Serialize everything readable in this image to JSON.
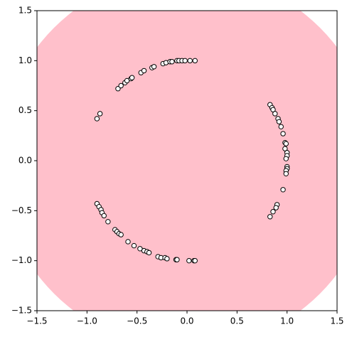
{
  "chart_data": {
    "type": "scatter",
    "region": {
      "shape": "circle",
      "radius": 1.88,
      "color": "#ffc0cb"
    },
    "marker_color": "#ffffff",
    "marker_edge": "#000000",
    "x": [
      -0.69,
      -0.66,
      -0.62,
      -0.6,
      -0.56,
      -0.55,
      -0.46,
      -0.43,
      -0.35,
      -0.33,
      -0.24,
      -0.21,
      -0.17,
      -0.15,
      -0.1,
      -0.08,
      -0.05,
      -0.02,
      0.03,
      0.08,
      -0.87,
      -0.9,
      0.83,
      0.85,
      0.86,
      0.88,
      0.91,
      0.92,
      0.94,
      0.96,
      0.98,
      0.99,
      0.98,
      1.0,
      1.0,
      0.99,
      1.0,
      1.0,
      0.99,
      0.99,
      0.96,
      0.9,
      0.89,
      0.86,
      0.83,
      -0.9,
      -0.88,
      -0.86,
      -0.85,
      -0.83,
      -0.79,
      -0.72,
      -0.7,
      -0.68,
      -0.66,
      -0.59,
      -0.53,
      -0.47,
      -0.43,
      -0.4,
      -0.38,
      -0.29,
      -0.26,
      -0.22,
      -0.2,
      -0.11,
      -0.1,
      0.02,
      0.07,
      0.08
    ],
    "values": [
      0.72,
      0.75,
      0.78,
      0.8,
      0.82,
      0.83,
      0.88,
      0.9,
      0.93,
      0.94,
      0.97,
      0.98,
      0.99,
      0.99,
      1.0,
      1.0,
      1.0,
      1.0,
      1.0,
      1.0,
      0.47,
      0.42,
      0.56,
      0.53,
      0.51,
      0.47,
      0.42,
      0.39,
      0.34,
      0.27,
      0.18,
      0.17,
      0.12,
      0.08,
      0.05,
      0.02,
      -0.06,
      -0.08,
      -0.1,
      -0.13,
      -0.29,
      -0.44,
      -0.47,
      -0.51,
      -0.56,
      -0.43,
      -0.46,
      -0.49,
      -0.52,
      -0.55,
      -0.61,
      -0.69,
      -0.71,
      -0.73,
      -0.74,
      -0.81,
      -0.85,
      -0.88,
      -0.9,
      -0.91,
      -0.92,
      -0.96,
      -0.97,
      -0.97,
      -0.98,
      -0.99,
      -0.99,
      -1.0,
      -1.0,
      -1.0
    ],
    "xlim": [
      -1.5,
      1.5
    ],
    "ylim": [
      -1.5,
      1.5
    ],
    "xticks": [
      {
        "value": -1.5,
        "label": "−1.5"
      },
      {
        "value": -1.0,
        "label": "−1.0"
      },
      {
        "value": -0.5,
        "label": "−0.5"
      },
      {
        "value": 0,
        "label": "0.0"
      },
      0.5,
      {
        "value": 1.0,
        "label": "1.0"
      },
      1.5
    ],
    "yticks": [
      {
        "value": -1.5,
        "label": "−1.5"
      },
      {
        "value": -1.0,
        "label": "−1.0"
      },
      {
        "value": -0.5,
        "label": "−0.5"
      },
      {
        "value": 0,
        "label": "0.0"
      },
      0.5,
      {
        "value": 1.0,
        "label": "1.0"
      },
      1.5
    ]
  }
}
